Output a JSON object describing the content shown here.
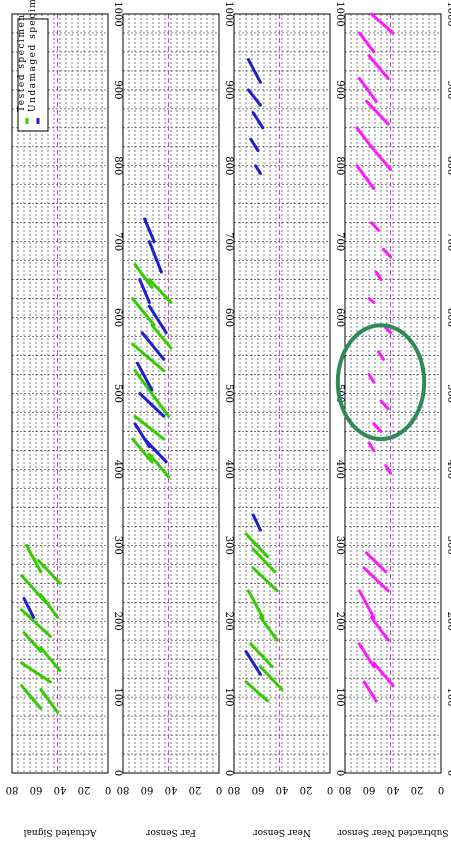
{
  "chart_data": {
    "type": "line",
    "orientation": "rotated-90",
    "panels": [
      {
        "ylabel": "Actuated Signal",
        "xlim": [
          0,
          1000
        ],
        "ylim": [
          0,
          80
        ],
        "series": [
          {
            "name": "Tested specimen",
            "color": "#33cc00",
            "segments": [
              {
                "x": [
                  80,
                  110
                ],
                "y": [
                  42,
                  56
                ]
              },
              {
                "x": [
                  85,
                  115
                ],
                "y": [
                  56,
                  72
                ]
              },
              {
                "x": [
                  120,
                  145
                ],
                "y": [
                  48,
                  72
                ]
              },
              {
                "x": [
                  135,
                  165
                ],
                "y": [
                  40,
                  56
                ]
              },
              {
                "x": [
                  160,
                  185
                ],
                "y": [
                  56,
                  70
                ]
              },
              {
                "x": [
                  180,
                  215
                ],
                "y": [
                  48,
                  72
                ]
              },
              {
                "x": [
                  205,
                  235
                ],
                "y": [
                  42,
                  56
                ]
              },
              {
                "x": [
                  225,
                  260
                ],
                "y": [
                  52,
                  72
                ]
              },
              {
                "x": [
                  250,
                  280
                ],
                "y": [
                  40,
                  58
                ]
              },
              {
                "x": [
                  265,
                  300
                ],
                "y": [
                  56,
                  68
                ]
              }
            ]
          },
          {
            "name": "Undamaged specimen",
            "color": "#1f1fd0",
            "segments": [
              {
                "x": [
                  205,
                  230
                ],
                "y": [
                  62,
                  70
                ]
              }
            ]
          }
        ]
      },
      {
        "ylabel": "Far Sensor",
        "xlim": [
          0,
          1000
        ],
        "ylim": [
          0,
          80
        ],
        "series": [
          {
            "name": "Tested specimen",
            "color": "#33cc00",
            "segments": [
              {
                "x": [
                  390,
                  420
                ],
                "y": [
                  42,
                  58
                ]
              },
              {
                "x": [
                  410,
                  440
                ],
                "y": [
                  56,
                  72
                ]
              },
              {
                "x": [
                  440,
                  470
                ],
                "y": [
                  46,
                  70
                ]
              },
              {
                "x": [
                  470,
                  500
                ],
                "y": [
                  42,
                  56
                ]
              },
              {
                "x": [
                  500,
                  530
                ],
                "y": [
                  56,
                  70
                ]
              },
              {
                "x": [
                  530,
                  565
                ],
                "y": [
                  46,
                  72
                ]
              },
              {
                "x": [
                  560,
                  590
                ],
                "y": [
                  40,
                  56
                ]
              },
              {
                "x": [
                  590,
                  625
                ],
                "y": [
                  54,
                  72
                ]
              },
              {
                "x": [
                  620,
                  650
                ],
                "y": [
                  40,
                  58
                ]
              },
              {
                "x": [
                  640,
                  670
                ],
                "y": [
                  56,
                  70
                ]
              }
            ]
          },
          {
            "name": "Undamaged specimen",
            "color": "#1f1fd0",
            "segments": [
              {
                "x": [
                  410,
                  440
                ],
                "y": [
                  44,
                  62
                ]
              },
              {
                "x": [
                  430,
                  460
                ],
                "y": [
                  58,
                  70
                ]
              },
              {
                "x": [
                  470,
                  500
                ],
                "y": [
                  46,
                  66
                ]
              },
              {
                "x": [
                  505,
                  540
                ],
                "y": [
                  56,
                  68
                ]
              },
              {
                "x": [
                  545,
                  580
                ],
                "y": [
                  46,
                  64
                ]
              },
              {
                "x": [
                  580,
                  615
                ],
                "y": [
                  44,
                  58
                ]
              },
              {
                "x": [
                  620,
                  650
                ],
                "y": [
                  58,
                  66
                ]
              },
              {
                "x": [
                  660,
                  700
                ],
                "y": [
                  48,
                  58
                ]
              },
              {
                "x": [
                  700,
                  730
                ],
                "y": [
                  54,
                  62
                ]
              }
            ]
          }
        ]
      },
      {
        "ylabel": "Near Sensor",
        "xlim": [
          0,
          1000
        ],
        "ylim": [
          0,
          80
        ],
        "series": [
          {
            "name": "Tested specimen",
            "color": "#33cc00",
            "segments": [
              {
                "x": [
                  95,
                  120
                ],
                "y": [
                  52,
                  70
                ]
              },
              {
                "x": [
                  110,
                  140
                ],
                "y": [
                  40,
                  58
                ]
              },
              {
                "x": [
                  140,
                  170
                ],
                "y": [
                  48,
                  66
                ]
              },
              {
                "x": [
                  175,
                  205
                ],
                "y": [
                  44,
                  58
                ]
              },
              {
                "x": [
                  205,
                  240
                ],
                "y": [
                  56,
                  68
                ]
              },
              {
                "x": [
                  240,
                  270
                ],
                "y": [
                  44,
                  64
                ]
              },
              {
                "x": [
                  265,
                  295
                ],
                "y": [
                  46,
                  64
                ]
              },
              {
                "x": [
                  285,
                  315
                ],
                "y": [
                  52,
                  70
                ]
              }
            ]
          },
          {
            "name": "Undamaged specimen",
            "color": "#1f1fd0",
            "segments": [
              {
                "x": [
                  130,
                  160
                ],
                "y": [
                  58,
                  70
                ]
              },
              {
                "x": [
                  320,
                  340
                ],
                "y": [
                  58,
                  64
                ]
              },
              {
                "x": [
                  790,
                  800
                ],
                "y": [
                  58,
                  62
                ]
              },
              {
                "x": [
                  820,
                  835
                ],
                "y": [
                  60,
                  66
                ]
              },
              {
                "x": [
                  850,
                  870
                ],
                "y": [
                  56,
                  64
                ]
              },
              {
                "x": [
                  880,
                  900
                ],
                "y": [
                  58,
                  68
                ]
              },
              {
                "x": [
                  910,
                  940
                ],
                "y": [
                  58,
                  68
                ]
              }
            ]
          }
        ]
      },
      {
        "ylabel": "Subtracted Near Sensor",
        "xlim": [
          0,
          1000
        ],
        "ylim": [
          0,
          80
        ],
        "series": [
          {
            "name": "Subtracted",
            "color": "#ff19ff",
            "segments": [
              {
                "x": [
                  95,
                  120
                ],
                "y": [
                  54,
                  64
                ]
              },
              {
                "x": [
                  115,
                  145
                ],
                "y": [
                  40,
                  56
                ]
              },
              {
                "x": [
                  140,
                  170
                ],
                "y": [
                  56,
                  68
                ]
              },
              {
                "x": [
                  175,
                  205
                ],
                "y": [
                  44,
                  58
                ]
              },
              {
                "x": [
                  205,
                  240
                ],
                "y": [
                  56,
                  68
                ]
              },
              {
                "x": [
                  240,
                  270
                ],
                "y": [
                  44,
                  64
                ]
              },
              {
                "x": [
                  265,
                  290
                ],
                "y": [
                  46,
                  62
                ]
              },
              {
                "x": [
                  395,
                  405
                ],
                "y": [
                  42,
                  46
                ]
              },
              {
                "x": [
                  425,
                  435
                ],
                "y": [
                  56,
                  60
                ]
              },
              {
                "x": [
                  450,
                  460
                ],
                "y": [
                  50,
                  56
                ]
              },
              {
                "x": [
                  480,
                  490
                ],
                "y": [
                  44,
                  50
                ]
              },
              {
                "x": [
                  515,
                  525
                ],
                "y": [
                  56,
                  60
                ]
              },
              {
                "x": [
                  545,
                  555
                ],
                "y": [
                  48,
                  52
                ]
              },
              {
                "x": [
                  580,
                  590
                ],
                "y": [
                  42,
                  48
                ]
              },
              {
                "x": [
                  620,
                  625
                ],
                "y": [
                  56,
                  60
                ]
              },
              {
                "x": [
                  650,
                  660
                ],
                "y": [
                  50,
                  54
                ]
              },
              {
                "x": [
                  680,
                  690
                ],
                "y": [
                  42,
                  48
                ]
              },
              {
                "x": [
                  715,
                  725
                ],
                "y": [
                  52,
                  58
                ]
              },
              {
                "x": [
                  770,
                  800
                ],
                "y": [
                  56,
                  70
                ]
              },
              {
                "x": [
                  795,
                  825
                ],
                "y": [
                  42,
                  58
                ]
              },
              {
                "x": [
                  825,
                  850
                ],
                "y": [
                  58,
                  70
                ]
              },
              {
                "x": [
                  855,
                  885
                ],
                "y": [
                  44,
                  62
                ]
              },
              {
                "x": [
                  885,
                  915
                ],
                "y": [
                  54,
                  68
                ]
              },
              {
                "x": [
                  915,
                  945
                ],
                "y": [
                  44,
                  60
                ]
              },
              {
                "x": [
                  950,
                  975
                ],
                "y": [
                  56,
                  68
                ]
              },
              {
                "x": [
                  975,
                  1000
                ],
                "y": [
                  40,
                  58
                ]
              }
            ]
          }
        ],
        "annotation": {
          "type": "ellipse",
          "color": "#2e8b57",
          "cx": 515,
          "cy": 50,
          "rx": 75,
          "ry": 60
        }
      }
    ],
    "threshold": {
      "y": 42,
      "color": "#cc33cc"
    },
    "xticks": [
      0,
      100,
      200,
      300,
      400,
      500,
      600,
      700,
      800,
      900,
      1000
    ],
    "yticks": [
      0,
      20,
      40,
      60,
      80
    ],
    "grid": true,
    "legend": {
      "entries": [
        "Undamaged specimen",
        "Tested specimen"
      ],
      "placement": "top-left"
    }
  }
}
